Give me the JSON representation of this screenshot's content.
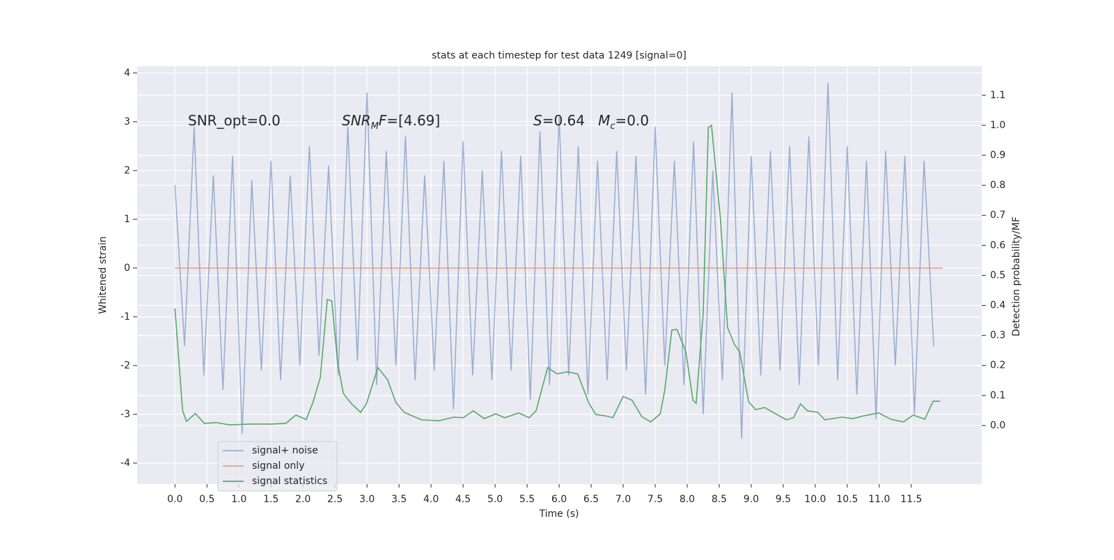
{
  "chart_data": {
    "type": "line",
    "title": "stats at each timestep for test data 1249 [signal=0]",
    "xlabel": "Time (s)",
    "ylabel": "Whitened strain",
    "y2label": "Detection probability/MF",
    "xlim": [
      -0.59,
      12.6
    ],
    "ylim": [
      -4.43,
      4.14
    ],
    "y2lim": [
      -0.195,
      1.197
    ],
    "xticks": [
      {
        "value": 0,
        "label": "0.0"
      },
      0.5,
      {
        "value": 1,
        "label": "1.0"
      },
      1.5,
      {
        "value": 2,
        "label": "2.0"
      },
      2.5,
      {
        "value": 3,
        "label": "3.0"
      },
      3.5,
      {
        "value": 4,
        "label": "4.0"
      },
      4.5,
      {
        "value": 5,
        "label": "5.0"
      },
      5.5,
      {
        "value": 6,
        "label": "6.0"
      },
      6.5,
      {
        "value": 7,
        "label": "7.0"
      },
      7.5,
      {
        "value": 8,
        "label": "8.0"
      },
      8.5,
      {
        "value": 9,
        "label": "9.0"
      },
      9.5,
      {
        "value": 10,
        "label": "10.0"
      },
      10.5,
      {
        "value": 11,
        "label": "11.0"
      },
      11.5
    ],
    "yticks": [
      -4,
      -3,
      -2,
      -1,
      0,
      1,
      2,
      3,
      4
    ],
    "y2ticks": [
      {
        "value": 0,
        "label": "0.0"
      },
      0.1,
      0.2,
      0.3,
      0.4,
      0.5,
      0.6,
      0.7,
      0.8,
      0.9,
      {
        "value": 1,
        "label": "1.0"
      },
      1.1
    ],
    "grid": true,
    "legend": "lower left",
    "annotations": [
      {
        "parts": [
          {
            "text": "SNR_opt=0.0",
            "style": "normal"
          }
        ]
      },
      {
        "parts": [
          {
            "text": "SNR",
            "style": "italic"
          },
          {
            "text": "M",
            "style": "sub"
          },
          {
            "text": "F",
            "style": "italic"
          },
          {
            "text": "=[4.69]",
            "style": "normal"
          }
        ]
      },
      {
        "parts": [
          {
            "text": "S",
            "style": "italic"
          },
          {
            "text": "=0.64   ",
            "style": "normal"
          },
          {
            "text": "M",
            "style": "italic"
          },
          {
            "text": "c",
            "style": "sub"
          },
          {
            "text": "=0.0",
            "style": "normal"
          }
        ]
      }
    ],
    "series": [
      {
        "name": "signal+ noise",
        "color": "#4c72b0",
        "alpha": 0.5,
        "x": [
          0,
          0.15,
          0.3,
          0.45,
          0.6,
          0.75,
          0.9,
          1.05,
          1.2,
          1.35,
          1.5,
          1.65,
          1.8,
          1.95,
          2.1,
          2.25,
          2.4,
          2.55,
          2.7,
          2.85,
          3,
          3.15,
          3.3,
          3.45,
          3.6,
          3.75,
          3.9,
          4.05,
          4.2,
          4.35,
          4.5,
          4.65,
          4.8,
          4.95,
          5.1,
          5.25,
          5.4,
          5.55,
          5.7,
          5.85,
          6,
          6.15,
          6.3,
          6.45,
          6.6,
          6.75,
          6.9,
          7.05,
          7.2,
          7.35,
          7.5,
          7.65,
          7.8,
          7.95,
          8.1,
          8.25,
          8.4,
          8.55,
          8.7,
          8.85,
          9,
          9.15,
          9.3,
          9.45,
          9.6,
          9.75,
          9.9,
          10.05,
          10.2,
          10.35,
          10.5,
          10.65,
          10.8,
          10.95,
          11.1,
          11.25,
          11.4,
          11.55,
          11.7,
          11.85
        ],
        "values": [
          1.7,
          -1.6,
          2.9,
          -2.2,
          1.9,
          -2.5,
          2.3,
          -3.4,
          1.8,
          -2.1,
          2.2,
          -2.3,
          1.9,
          -2.0,
          2.5,
          -1.8,
          2.1,
          -2.2,
          2.9,
          -1.9,
          3.6,
          -2.4,
          2.4,
          -2.0,
          2.7,
          -2.3,
          1.9,
          -2.1,
          2.2,
          -2.9,
          2.6,
          -2.2,
          2.0,
          -2.3,
          2.4,
          -2.1,
          2.3,
          -2.7,
          2.8,
          -2.4,
          3.1,
          -2.2,
          2.5,
          -2.6,
          2.2,
          -2.3,
          2.4,
          -2.1,
          2.3,
          -2.6,
          2.9,
          -2.0,
          2.2,
          -2.4,
          2.6,
          -3.0,
          2.0,
          -2.3,
          3.6,
          -3.5,
          2.3,
          -2.2,
          2.4,
          -2.1,
          2.5,
          -2.4,
          2.7,
          -2.0,
          3.8,
          -2.3,
          2.5,
          -2.6,
          2.2,
          -3.1,
          2.4,
          -2.0,
          2.3,
          -3.0,
          2.2,
          -1.6
        ]
      },
      {
        "name": "signal only",
        "color": "#dd8452",
        "alpha": 0.7,
        "x": [
          0,
          11.99
        ],
        "values": [
          0,
          0
        ]
      },
      {
        "name": "signal statistics",
        "color": "#55a868",
        "alpha": 1,
        "axis": "y2",
        "x": [
          0,
          0.12,
          0.18,
          0.32,
          0.46,
          0.64,
          0.86,
          1.18,
          1.51,
          1.73,
          1.89,
          2.05,
          2.16,
          2.27,
          2.38,
          2.45,
          2.54,
          2.63,
          2.76,
          2.9,
          2.99,
          3.17,
          3.32,
          3.45,
          3.58,
          3.85,
          4.12,
          4.36,
          4.5,
          4.66,
          4.83,
          5.01,
          5.15,
          5.37,
          5.53,
          5.64,
          5.82,
          5.97,
          6.13,
          6.29,
          6.46,
          6.57,
          6.73,
          6.84,
          7.0,
          7.14,
          7.29,
          7.43,
          7.58,
          7.65,
          7.76,
          7.84,
          7.98,
          8.09,
          8.14,
          8.25,
          8.33,
          8.38,
          8.52,
          8.63,
          8.74,
          8.82,
          8.96,
          9.07,
          9.21,
          9.34,
          9.55,
          9.66,
          9.77,
          9.88,
          10.04,
          10.15,
          10.42,
          10.59,
          10.75,
          10.99,
          11.18,
          11.38,
          11.53,
          11.71,
          11.84,
          11.95
        ],
        "values": [
          0.39,
          0.05,
          0.014,
          0.04,
          0.007,
          0.01,
          0.002,
          0.005,
          0.005,
          0.007,
          0.035,
          0.02,
          0.08,
          0.16,
          0.42,
          0.415,
          0.21,
          0.107,
          0.072,
          0.044,
          0.072,
          0.193,
          0.153,
          0.077,
          0.044,
          0.019,
          0.016,
          0.028,
          0.026,
          0.049,
          0.023,
          0.039,
          0.026,
          0.042,
          0.026,
          0.049,
          0.193,
          0.172,
          0.179,
          0.172,
          0.077,
          0.037,
          0.032,
          0.026,
          0.097,
          0.084,
          0.03,
          0.012,
          0.039,
          0.118,
          0.318,
          0.32,
          0.246,
          0.084,
          0.074,
          0.374,
          0.993,
          1.0,
          0.687,
          0.327,
          0.269,
          0.246,
          0.079,
          0.053,
          0.06,
          0.044,
          0.019,
          0.026,
          0.072,
          0.049,
          0.044,
          0.019,
          0.028,
          0.023,
          0.032,
          0.042,
          0.021,
          0.012,
          0.035,
          0.021,
          0.081,
          0.081
        ]
      }
    ]
  }
}
